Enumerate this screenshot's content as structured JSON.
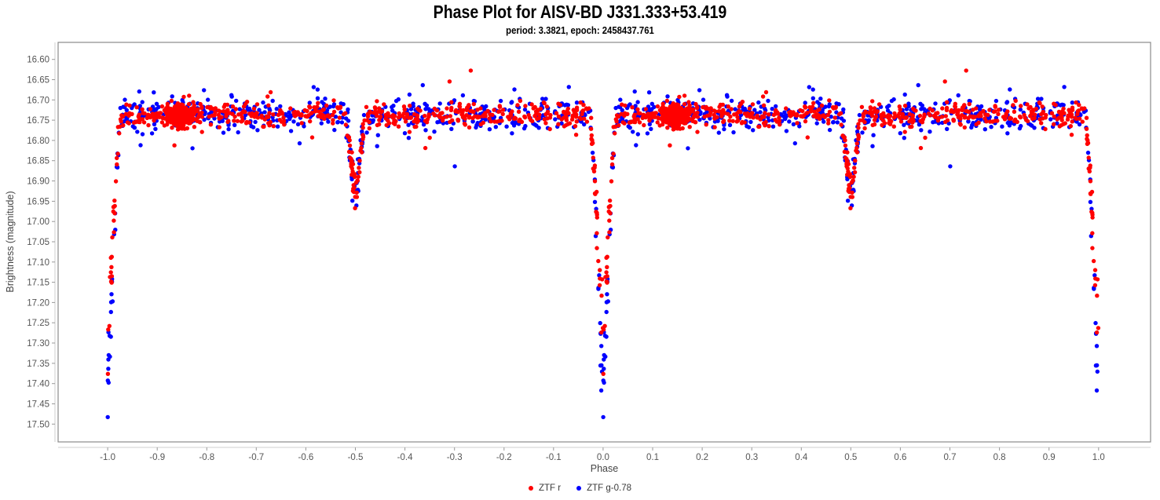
{
  "chart_data": {
    "type": "scatter",
    "title": "Phase Plot for AISV-BD J331.333+53.419",
    "subtitle": "period: 3.3821, epoch: 2458437.761",
    "xlabel": "Phase",
    "ylabel": "Brightness (magnitude)",
    "grid": false,
    "marker_radius_px": 2.7,
    "x_axis": {
      "min": -1.1,
      "max": 1.105,
      "ticks": [
        -1.0,
        -0.9,
        -0.8,
        -0.7,
        -0.6,
        -0.5,
        -0.4,
        -0.3,
        -0.2,
        -0.1,
        0.0,
        0.1,
        0.2,
        0.3,
        0.4,
        0.5,
        0.6,
        0.7,
        0.8,
        0.9,
        1.0
      ],
      "tick_decimals": 1
    },
    "y_axis": {
      "min": 16.558,
      "max": 17.544,
      "direction": "magnitude-increases-downward",
      "ticks": [
        16.6,
        16.65,
        16.7,
        16.75,
        16.8,
        16.85,
        16.9,
        16.95,
        17.0,
        17.05,
        17.1,
        17.15,
        17.2,
        17.25,
        17.3,
        17.35,
        17.4,
        17.45,
        17.5
      ],
      "tick_decimals": 2
    },
    "legend": {
      "position": "bottom-center",
      "items": [
        {
          "label": "ZTF r",
          "color": "#ff0000"
        },
        {
          "label": "ZTF g-0.78",
          "color": "#0000ff"
        }
      ]
    },
    "phase_fold": {
      "duplicate_offset": -1.0,
      "note": "each point plotted at phase and phase-1, x spans -1.0 to 1.0"
    },
    "light_curve_features": {
      "object_type": "eclipsing binary",
      "out_of_eclipse_mag": 16.74,
      "band_spread_mag": [
        16.7,
        16.79
      ],
      "primary_eclipse": {
        "phase": 0.0,
        "min_mag_ztf_r": 17.31,
        "min_mag_ztf_g": 17.47,
        "half_width_phase": 0.026
      },
      "secondary_eclipse": {
        "phase": 0.5,
        "min_mag": 16.96,
        "half_width_phase": 0.021
      },
      "dense_red_cluster": {
        "phase": 0.145,
        "also_at_phase": -0.855,
        "mag": 16.74
      }
    },
    "series": [
      {
        "name": "ZTF r",
        "color": "#ff0000",
        "seed": 7,
        "n_points": 560,
        "baseline": 16.737,
        "band_sigma": 0.0155,
        "outlier_rate": 0.05,
        "outlier_sigma": 0.04,
        "primary_eclipse": {
          "half_width": 0.026,
          "depth": 0.6,
          "extra_points": 32
        },
        "secondary_eclipse": {
          "half_width": 0.021,
          "depth": 0.23,
          "extra_points": 26
        },
        "clump": {
          "phase": 0.145,
          "phase_sigma": 0.0165,
          "mag_sigma": 0.014,
          "n_points": 235
        }
      },
      {
        "name": "ZTF g-0.78",
        "color": "#0000ff",
        "seed": 13,
        "n_points": 470,
        "baseline": 16.735,
        "band_sigma": 0.021,
        "outlier_rate": 0.07,
        "outlier_sigma": 0.042,
        "primary_eclipse": {
          "half_width": 0.026,
          "depth": 0.74,
          "extra_points": 30
        },
        "secondary_eclipse": {
          "half_width": 0.021,
          "depth": 0.23,
          "extra_points": 24
        }
      }
    ]
  }
}
